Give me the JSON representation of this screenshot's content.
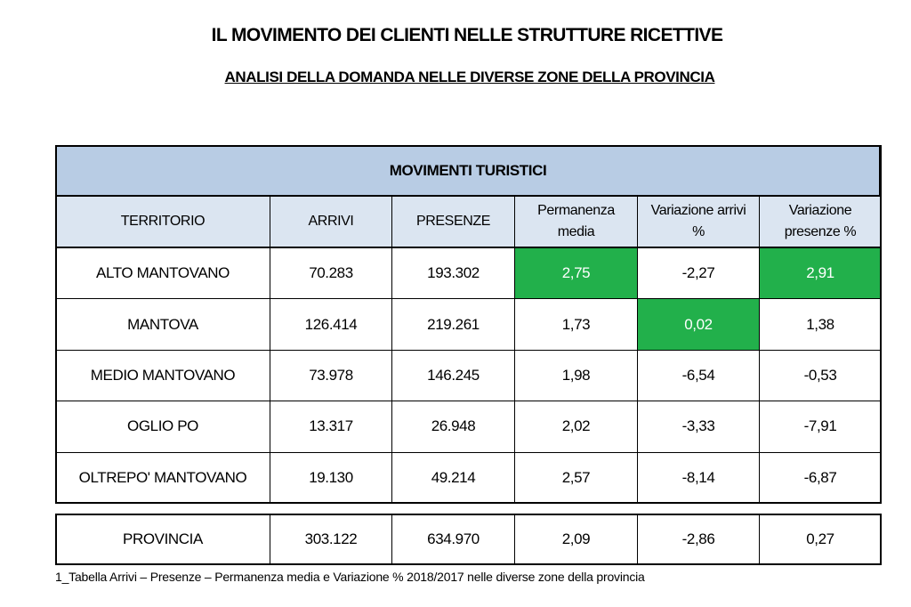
{
  "header": {
    "title": "IL MOVIMENTO DEI CLIENTI NELLE STRUTTURE RICETTIVE",
    "subtitle": "ANALISI DELLA DOMANDA NELLE DIVERSE ZONE DELLA PROVINCIA"
  },
  "table": {
    "title": "MOVIMENTI TURISTICI",
    "columns": [
      "TERRITORIO",
      "ARRIVI",
      "PRESENZE",
      "Permanenza media",
      "Variazione arrivi %",
      "Variazione presenze %"
    ],
    "rows": [
      [
        "ALTO MANTOVANO",
        "70.283",
        "193.302",
        "2,75",
        "-2,27",
        "2,91"
      ],
      [
        "MANTOVA",
        "126.414",
        "219.261",
        "1,73",
        "0,02",
        "1,38"
      ],
      [
        "MEDIO MANTOVANO",
        "73.978",
        "146.245",
        "1,98",
        "-6,54",
        "-0,53"
      ],
      [
        "OGLIO PO",
        "13.317",
        "26.948",
        "2,02",
        "-3,33",
        "-7,91"
      ],
      [
        "OLTREPO' MANTOVANO",
        "19.130",
        "49.214",
        "2,57",
        "-8,14",
        "-6,87"
      ]
    ],
    "total": [
      "PROVINCIA",
      "303.122",
      "634.970",
      "2,09",
      "-2,86",
      "0,27"
    ]
  },
  "caption": "1_Tabella Arrivi – Presenze – Permanenza media e Variazione % 2018/2017 nelle diverse zone della provincia"
}
